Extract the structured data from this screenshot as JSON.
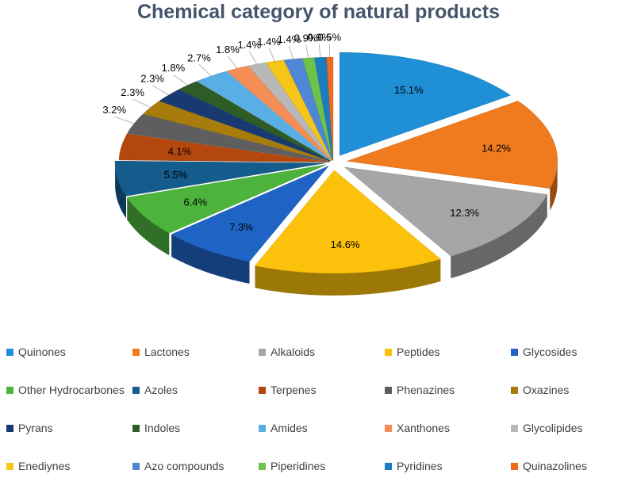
{
  "chart_data": {
    "type": "pie",
    "title": "Chemical category of natural products",
    "style": "3d-exploded",
    "legend_position": "bottom",
    "slices": [
      {
        "name": "Quinones",
        "value": 15.1,
        "label": "15.1%",
        "color": "#1f8fd6"
      },
      {
        "name": "Lactones",
        "value": 14.2,
        "label": "14.2%",
        "color": "#f07a1e"
      },
      {
        "name": "Alkaloids",
        "value": 12.3,
        "label": "12.3%",
        "color": "#a6a6a6"
      },
      {
        "name": "Peptides",
        "value": 14.6,
        "label": "14.6%",
        "color": "#fcc10a"
      },
      {
        "name": "Glycosides",
        "value": 7.3,
        "label": "7.3%",
        "color": "#1f64c4"
      },
      {
        "name": "Other Hydrocarbones",
        "value": 6.4,
        "label": "6.4%",
        "color": "#4db33d"
      },
      {
        "name": "Azoles",
        "value": 5.5,
        "label": "5.5%",
        "color": "#145c8c"
      },
      {
        "name": "Terpenes",
        "value": 4.1,
        "label": "4.1%",
        "color": "#b4470e"
      },
      {
        "name": "Phenazines",
        "value": 3.2,
        "label": "3.2%",
        "color": "#5e5e5e"
      },
      {
        "name": "Oxazines",
        "value": 2.3,
        "label": "2.3%",
        "color": "#a87c0a"
      },
      {
        "name": "Pyrans",
        "value": 2.3,
        "label": "2.3%",
        "color": "#183a70"
      },
      {
        "name": "Indoles",
        "value": 1.8,
        "label": "1.8%",
        "color": "#2d5c26"
      },
      {
        "name": "Amides",
        "value": 2.7,
        "label": "2.7%",
        "color": "#5aaee6"
      },
      {
        "name": "Xanthones",
        "value": 1.8,
        "label": "1.8%",
        "color": "#f58d56"
      },
      {
        "name": "Glycolipides",
        "value": 1.4,
        "label": "1.4%",
        "color": "#b8b8b8"
      },
      {
        "name": "Enediynes",
        "value": 1.4,
        "label": "1.4%",
        "color": "#f5c518"
      },
      {
        "name": "Azo compounds",
        "value": 1.4,
        "label": "1.4%",
        "color": "#4f86d6"
      },
      {
        "name": "Piperidines",
        "value": 0.9,
        "label": "0.9%",
        "color": "#6cc24a"
      },
      {
        "name": "Pyridines",
        "value": 0.9,
        "label": "0.9%",
        "color": "#1a7cc1"
      },
      {
        "name": "Quinazolines",
        "value": 0.5,
        "label": "0.5%",
        "color": "#f26a1b"
      }
    ]
  }
}
